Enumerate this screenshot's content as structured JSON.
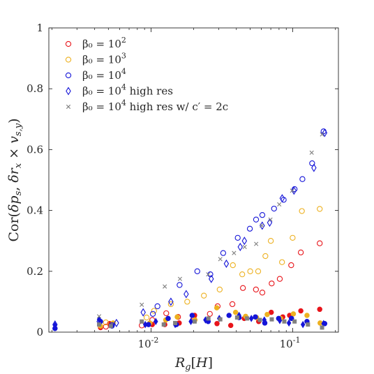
{
  "chart_data": {
    "type": "scatter",
    "xlabel": "R_g[H]",
    "ylabel": "Cor(δp_s, δr_x × v_{s,y})",
    "x_scale": "log",
    "xlim": [
      0.0019,
      0.21
    ],
    "ylim": [
      0,
      1
    ],
    "x_ticks": [
      {
        "value": 0.01,
        "label": "10",
        "exp": "-2"
      },
      {
        "value": 0.1,
        "label": "10",
        "exp": "-1"
      }
    ],
    "y_ticks": [
      {
        "value": 0,
        "label": "0"
      },
      {
        "value": 0.2,
        "label": "0.2"
      },
      {
        "value": 0.4,
        "label": "0.4"
      },
      {
        "value": 0.6,
        "label": "0.6"
      },
      {
        "value": 0.8,
        "label": "0.8"
      },
      {
        "value": 1,
        "label": "1"
      }
    ],
    "grid": false,
    "legend_position": "top-left",
    "series": [
      {
        "name": "β₀ = 10²",
        "legend_base": "β₀ = 10",
        "legend_exp": "2",
        "color": "#e8141a",
        "marker": "circle",
        "points": [
          [
            0.0048,
            0.018
          ],
          [
            0.0086,
            0.022
          ],
          [
            0.0102,
            0.04
          ],
          [
            0.0128,
            0.062
          ],
          [
            0.0155,
            0.05
          ],
          [
            0.02,
            0.05
          ],
          [
            0.026,
            0.06
          ],
          [
            0.0295,
            0.085
          ],
          [
            0.0375,
            0.092
          ],
          [
            0.0445,
            0.145
          ],
          [
            0.055,
            0.14
          ],
          [
            0.061,
            0.13
          ],
          [
            0.071,
            0.16
          ],
          [
            0.081,
            0.175
          ],
          [
            0.0975,
            0.22
          ],
          [
            0.114,
            0.262
          ],
          [
            0.155,
            0.292
          ]
        ],
        "filled_points": [
          [
            0.0044,
            0.015
          ],
          [
            0.0051,
            0.028
          ],
          [
            0.0102,
            0.025
          ],
          [
            0.0125,
            0.025
          ],
          [
            0.0158,
            0.03
          ],
          [
            0.0203,
            0.055
          ],
          [
            0.0292,
            0.028
          ],
          [
            0.0365,
            0.022
          ],
          [
            0.0455,
            0.045
          ],
          [
            0.0575,
            0.035
          ],
          [
            0.0705,
            0.065
          ],
          [
            0.085,
            0.05
          ],
          [
            0.095,
            0.055
          ],
          [
            0.114,
            0.07
          ],
          [
            0.155,
            0.075
          ]
        ]
      },
      {
        "name": "β₀ = 10³",
        "legend_base": "β₀ = 10",
        "legend_exp": "3",
        "color": "#edb120",
        "marker": "circle",
        "points": [
          [
            0.0048,
            0.032
          ],
          [
            0.0093,
            0.048
          ],
          [
            0.0105,
            0.07
          ],
          [
            0.0138,
            0.092
          ],
          [
            0.018,
            0.1
          ],
          [
            0.0236,
            0.12
          ],
          [
            0.0305,
            0.14
          ],
          [
            0.0378,
            0.22
          ],
          [
            0.044,
            0.19
          ],
          [
            0.0501,
            0.2
          ],
          [
            0.057,
            0.2
          ],
          [
            0.0641,
            0.25
          ],
          [
            0.07,
            0.3
          ],
          [
            0.084,
            0.23
          ],
          [
            0.0998,
            0.31
          ],
          [
            0.116,
            0.398
          ],
          [
            0.155,
            0.405
          ]
        ],
        "filled_points": [
          [
            0.0044,
            0.02
          ],
          [
            0.0054,
            0.03
          ],
          [
            0.0098,
            0.03
          ],
          [
            0.0127,
            0.04
          ],
          [
            0.0153,
            0.05
          ],
          [
            0.0204,
            0.04
          ],
          [
            0.0291,
            0.08
          ],
          [
            0.0395,
            0.065
          ],
          [
            0.0465,
            0.052
          ],
          [
            0.0555,
            0.048
          ],
          [
            0.066,
            0.058
          ],
          [
            0.082,
            0.045
          ],
          [
            0.101,
            0.06
          ],
          [
            0.126,
            0.055
          ],
          [
            0.156,
            0.03
          ]
        ]
      },
      {
        "name": "β₀ = 10⁴",
        "legend_base": "β₀ = 10",
        "legend_exp": "4",
        "color": "#1414d8",
        "marker": "circle",
        "points": [
          [
            0.0053,
            0.023
          ],
          [
            0.0103,
            0.06
          ],
          [
            0.0111,
            0.085
          ],
          [
            0.0159,
            0.155
          ],
          [
            0.0212,
            0.2
          ],
          [
            0.0262,
            0.19
          ],
          [
            0.0323,
            0.26
          ],
          [
            0.0409,
            0.31
          ],
          [
            0.0498,
            0.34
          ],
          [
            0.0551,
            0.37
          ],
          [
            0.061,
            0.385
          ],
          [
            0.0738,
            0.406
          ],
          [
            0.0863,
            0.435
          ],
          [
            0.103,
            0.47
          ],
          [
            0.117,
            0.503
          ],
          [
            0.137,
            0.555
          ],
          [
            0.165,
            0.66
          ]
        ],
        "filled_points": [
          [
            0.0021,
            0.012
          ],
          [
            0.0044,
            0.035
          ],
          [
            0.0053,
            0.02
          ],
          [
            0.0096,
            0.025
          ],
          [
            0.0132,
            0.045
          ],
          [
            0.0151,
            0.025
          ],
          [
            0.0195,
            0.055
          ],
          [
            0.0253,
            0.035
          ],
          [
            0.0355,
            0.055
          ],
          [
            0.0418,
            0.048
          ],
          [
            0.0545,
            0.05
          ],
          [
            0.0635,
            0.03
          ],
          [
            0.0795,
            0.045
          ],
          [
            0.098,
            0.045
          ],
          [
            0.126,
            0.035
          ],
          [
            0.168,
            0.028
          ]
        ]
      },
      {
        "name": "β₀ = 10⁴ high res",
        "legend_base": "β₀ = 10",
        "legend_exp": "4",
        "legend_suffix": " high res",
        "color": "#1414d8",
        "marker": "diamond",
        "points": [
          [
            0.0021,
            0.025
          ],
          [
            0.0043,
            0.035
          ],
          [
            0.0057,
            0.03
          ],
          [
            0.0088,
            0.065
          ],
          [
            0.0138,
            0.1
          ],
          [
            0.0177,
            0.125
          ],
          [
            0.0266,
            0.175
          ],
          [
            0.034,
            0.225
          ],
          [
            0.0426,
            0.28
          ],
          [
            0.0456,
            0.3
          ],
          [
            0.0609,
            0.35
          ],
          [
            0.0687,
            0.36
          ],
          [
            0.0842,
            0.44
          ],
          [
            0.102,
            0.465
          ],
          [
            0.141,
            0.54
          ],
          [
            0.168,
            0.655
          ]
        ],
        "filled_points": [
          [
            0.0021,
            0.022
          ],
          [
            0.0043,
            0.042
          ],
          [
            0.0091,
            0.025
          ],
          [
            0.0108,
            0.035
          ],
          [
            0.0148,
            0.025
          ],
          [
            0.0191,
            0.035
          ],
          [
            0.0242,
            0.04
          ],
          [
            0.0303,
            0.045
          ],
          [
            0.0418,
            0.055
          ],
          [
            0.051,
            0.045
          ],
          [
            0.063,
            0.04
          ],
          [
            0.081,
            0.038
          ],
          [
            0.094,
            0.03
          ],
          [
            0.118,
            0.025
          ],
          [
            0.165,
            0.028
          ]
        ]
      },
      {
        "name": "β₀ = 10⁴ high res w/ c′ = 2c",
        "legend_base": "β₀ = 10",
        "legend_exp": "4",
        "legend_suffix": " high res w/ c′ = 2c",
        "color": "#808080",
        "marker": "x",
        "points": [
          [
            0.0043,
            0.052
          ],
          [
            0.0086,
            0.09
          ],
          [
            0.0125,
            0.15
          ],
          [
            0.016,
            0.175
          ],
          [
            0.0253,
            0.19
          ],
          [
            0.0308,
            0.24
          ],
          [
            0.0385,
            0.26
          ],
          [
            0.0458,
            0.28
          ],
          [
            0.0552,
            0.29
          ],
          [
            0.0605,
            0.35
          ],
          [
            0.0696,
            0.37
          ],
          [
            0.0803,
            0.42
          ],
          [
            0.099,
            0.465
          ],
          [
            0.136,
            0.59
          ],
          [
            0.161,
            0.65
          ]
        ],
        "filled_points": [
          [
            0.0043,
            0.025
          ],
          [
            0.0052,
            0.02
          ],
          [
            0.0086,
            0.035
          ],
          [
            0.0123,
            0.025
          ],
          [
            0.0148,
            0.03
          ],
          [
            0.0203,
            0.035
          ],
          [
            0.0254,
            0.045
          ],
          [
            0.0308,
            0.042
          ],
          [
            0.0405,
            0.048
          ],
          [
            0.0476,
            0.045
          ],
          [
            0.0586,
            0.04
          ],
          [
            0.0711,
            0.042
          ],
          [
            0.0872,
            0.035
          ],
          [
            0.103,
            0.035
          ],
          [
            0.128,
            0.025
          ],
          [
            0.161,
            0.015
          ]
        ]
      }
    ]
  }
}
